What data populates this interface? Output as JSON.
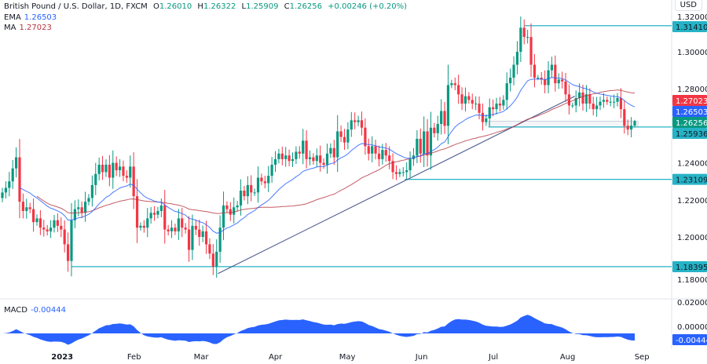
{
  "header": {
    "symbol": "British Pound / U.S. Dollar, 1D, FXCM",
    "open_label": "O",
    "open": "1.26010",
    "high_label": "H",
    "high": "1.26322",
    "low_label": "L",
    "low": "1.25909",
    "close_label": "C",
    "close": "1.26256",
    "change": "+0.00246 (+0.20%)",
    "ema_label": "EMA",
    "ema_value": "1.26503",
    "ma_label": "MA",
    "ma_value": "1.27023",
    "currency": "USD"
  },
  "macd": {
    "label": "MACD",
    "value": "-0.00444",
    "ticks": [
      "0.02000",
      "0.00000"
    ]
  },
  "colors": {
    "up": "#089981",
    "down": "#f23645",
    "ema": "#2962ff",
    "ma": "#b2353f",
    "levels": "#26b3c6",
    "trendline": "#4a5b8f",
    "macd": "#2962ff"
  },
  "chart_data": {
    "type": "candlestick",
    "x_range": [
      "2022-12-08",
      "2023-08-29"
    ],
    "x_tick_labels": [
      "2023",
      "Feb",
      "Mar",
      "Apr",
      "May",
      "Jun",
      "Jul",
      "Aug",
      "Sep"
    ],
    "y_ticks": [
      "1.32000",
      "1.30000",
      "1.28000",
      "1.24000",
      "1.22000",
      "1.20000",
      "1.18000"
    ],
    "ylim": [
      1.176,
      1.32
    ],
    "closes": [
      1.224,
      1.2265,
      1.23,
      1.237,
      1.243,
      1.219,
      1.214,
      1.216,
      1.215,
      1.208,
      1.21,
      1.205,
      1.204,
      1.203,
      1.205,
      1.209,
      1.206,
      1.204,
      1.196,
      1.187,
      1.209,
      1.215,
      1.216,
      1.213,
      1.219,
      1.221,
      1.228,
      1.234,
      1.239,
      1.235,
      1.239,
      1.232,
      1.24,
      1.236,
      1.238,
      1.233,
      1.232,
      1.238,
      1.222,
      1.205,
      1.206,
      1.205,
      1.21,
      1.213,
      1.212,
      1.214,
      1.217,
      1.204,
      1.203,
      1.205,
      1.203,
      1.21,
      1.205,
      1.204,
      1.193,
      1.206,
      1.204,
      1.2,
      1.203,
      1.196,
      1.191,
      1.184,
      1.192,
      1.205,
      1.217,
      1.215,
      1.212,
      1.216,
      1.217,
      1.225,
      1.222,
      1.228,
      1.224,
      1.224,
      1.232,
      1.23,
      1.229,
      1.233,
      1.239,
      1.242,
      1.245,
      1.242,
      1.244,
      1.241,
      1.242,
      1.246,
      1.245,
      1.252,
      1.242,
      1.243,
      1.241,
      1.244,
      1.24,
      1.239,
      1.245,
      1.248,
      1.243,
      1.257,
      1.254,
      1.251,
      1.258,
      1.263,
      1.262,
      1.263,
      1.259,
      1.249,
      1.245,
      1.249,
      1.245,
      1.242,
      1.247,
      1.244,
      1.241,
      1.235,
      1.234,
      1.235,
      1.235,
      1.236,
      1.242,
      1.244,
      1.253,
      1.245,
      1.257,
      1.244,
      1.259,
      1.256,
      1.261,
      1.268,
      1.26,
      1.282,
      1.283,
      1.282,
      1.277,
      1.272,
      1.276,
      1.274,
      1.272,
      1.272,
      1.267,
      1.262,
      1.264,
      1.27,
      1.269,
      1.272,
      1.271,
      1.274,
      1.283,
      1.286,
      1.293,
      1.3,
      1.313,
      1.308,
      1.308,
      1.293,
      1.286,
      1.286,
      1.285,
      1.282,
      1.29,
      1.293,
      1.283,
      1.285,
      1.284,
      1.277,
      1.271,
      1.271,
      1.275,
      1.278,
      1.272,
      1.277,
      1.272,
      1.269,
      1.271,
      1.273,
      1.274,
      1.273,
      1.273,
      1.273,
      1.275,
      1.269,
      1.26,
      1.258,
      1.2601,
      1.2626
    ],
    "last_bar": {
      "open": 1.2601,
      "high": 1.26322,
      "low": 1.25909,
      "close": 1.26256
    },
    "indicators": [
      "EMA",
      "MA",
      "MACD"
    ],
    "levels": [
      {
        "price": 1.3141,
        "label": "1.31410",
        "from": "2023-07-14"
      },
      {
        "price": 1.25936,
        "label": "1.25936",
        "from": "2023-06-29"
      },
      {
        "price": 1.23109,
        "label": "1.23109",
        "from": "2023-05-25"
      },
      {
        "price": 1.18395,
        "label": "1.18395",
        "from": "2023-01-06"
      }
    ],
    "trendline": {
      "from": [
        "2023-03-08",
        1.1802
      ],
      "to": [
        "2023-08-04",
        1.276
      ]
    },
    "price_labels": {
      "ma": "1.27023",
      "ema": "1.26503",
      "close": "1.26256"
    }
  }
}
